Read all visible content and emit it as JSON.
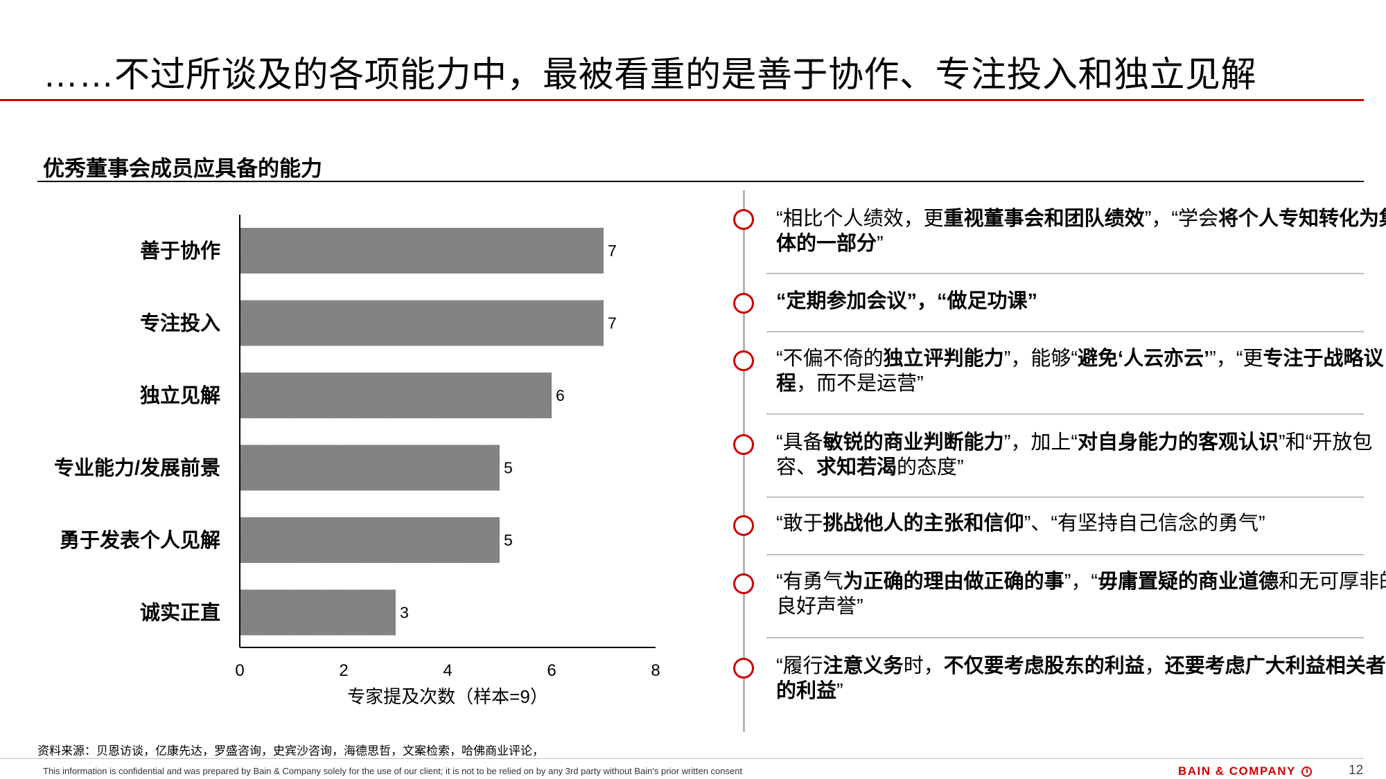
{
  "title": "……不过所谈及的各项能力中，最被看重的是善于协作、专注投入和独立见解",
  "section_title": "优秀董事会成员应具备的能力",
  "chart_data": {
    "type": "bar",
    "orientation": "horizontal",
    "categories": [
      "善于协作",
      "专注投入",
      "独立见解",
      "专业能力/发展前景",
      "勇于发表个人见解",
      "诚实正直"
    ],
    "values": [
      7,
      7,
      6,
      5,
      5,
      3
    ],
    "xlabel": "专家提及次数（样本=9）",
    "xlim": [
      0,
      8
    ],
    "xticks": [
      0,
      2,
      4,
      6,
      8
    ],
    "bar_color": "#808080",
    "grid": false
  },
  "quotes": [
    {
      "segments": [
        {
          "text": "“相比个人绩效，更",
          "bold": false
        },
        {
          "text": "重视董事会和团队绩效",
          "bold": true
        },
        {
          "text": "”，“学会",
          "bold": false
        },
        {
          "text": "将个人专知转化为集体的一部分",
          "bold": true
        },
        {
          "text": "”",
          "bold": false
        }
      ]
    },
    {
      "segments": [
        {
          "text": "“定期参加会议”，“做足功课”",
          "bold": true
        }
      ]
    },
    {
      "segments": [
        {
          "text": "“不偏不倚的",
          "bold": false
        },
        {
          "text": "独立评判能力",
          "bold": true
        },
        {
          "text": "”，能够“",
          "bold": false
        },
        {
          "text": "避免‘人云亦云’",
          "bold": true
        },
        {
          "text": "”，“更",
          "bold": false
        },
        {
          "text": "专注于战略议程",
          "bold": true
        },
        {
          "text": "，而不是运营”",
          "bold": false
        }
      ]
    },
    {
      "segments": [
        {
          "text": "“具备",
          "bold": false
        },
        {
          "text": "敏锐的商业判断能力",
          "bold": true
        },
        {
          "text": "”，加上“",
          "bold": false
        },
        {
          "text": "对自身能力的客观认识",
          "bold": true
        },
        {
          "text": "”和“开放包容、",
          "bold": false
        },
        {
          "text": "求知若渴",
          "bold": true
        },
        {
          "text": "的态度”",
          "bold": false
        }
      ]
    },
    {
      "segments": [
        {
          "text": "“敢于",
          "bold": false
        },
        {
          "text": "挑战他人的主张和信仰",
          "bold": true
        },
        {
          "text": "”、“有坚持自己信念的勇气”",
          "bold": false
        }
      ]
    },
    {
      "segments": [
        {
          "text": "“有勇气",
          "bold": false
        },
        {
          "text": "为正确的理由做正确的事",
          "bold": true
        },
        {
          "text": "”，“",
          "bold": false
        },
        {
          "text": "毋庸置疑的商业道德",
          "bold": true
        },
        {
          "text": "和无可厚非的良好声誉”",
          "bold": false
        }
      ]
    },
    {
      "segments": [
        {
          "text": "“履行",
          "bold": false
        },
        {
          "text": "注意义务",
          "bold": true
        },
        {
          "text": "时，",
          "bold": false
        },
        {
          "text": "不仅要考虑股东的利益",
          "bold": true
        },
        {
          "text": "，",
          "bold": false
        },
        {
          "text": "还要考虑广大利益相关者的利益",
          "bold": true
        },
        {
          "text": "”",
          "bold": false
        }
      ]
    }
  ],
  "source": "资料来源：贝恩访谈，亿康先达，罗盛咨询，史宾沙咨询，海德思哲，文案检索，哈佛商业评论，",
  "footer": {
    "disclaimer": "This information is confidential and was prepared by Bain & Company solely for the use of our client; it is not to be relied on by any 3rd party without Bain's prior written consent",
    "brand": "BAIN & COMPANY",
    "page_number": "12"
  },
  "colors": {
    "accent": "#cc0000",
    "bar": "#808080",
    "timeline": "#b3b3b3"
  }
}
